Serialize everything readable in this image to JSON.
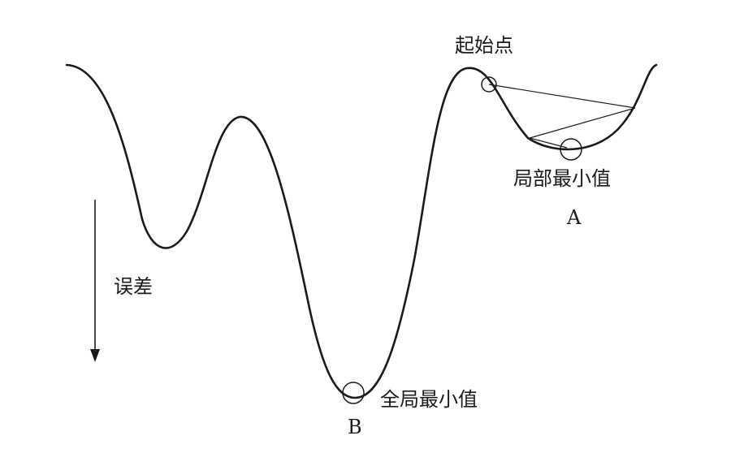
{
  "labels": {
    "start_point": "起始点",
    "local_min": "局部最小值",
    "local_min_letter": "A",
    "error": "误差",
    "global_min": "全局最小值",
    "global_min_letter": "B"
  }
}
